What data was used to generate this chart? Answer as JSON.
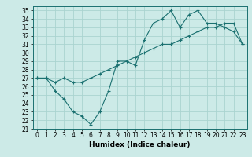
{
  "title": "",
  "xlabel": "Humidex (Indice chaleur)",
  "ylabel": "",
  "bg_color": "#cceae7",
  "grid_color": "#aad4d0",
  "line_color": "#1a7070",
  "xlim": [
    -0.5,
    23.5
  ],
  "ylim": [
    21,
    35.5
  ],
  "xticks": [
    0,
    1,
    2,
    3,
    4,
    5,
    6,
    7,
    8,
    9,
    10,
    11,
    12,
    13,
    14,
    15,
    16,
    17,
    18,
    19,
    20,
    21,
    22,
    23
  ],
  "yticks": [
    21,
    22,
    23,
    24,
    25,
    26,
    27,
    28,
    29,
    30,
    31,
    32,
    33,
    34,
    35
  ],
  "series1_x": [
    0,
    1,
    2,
    3,
    4,
    5,
    6,
    7,
    8,
    9,
    10,
    11,
    12,
    13,
    14,
    15,
    16,
    17,
    18,
    19,
    20,
    21,
    22,
    23
  ],
  "series1_y": [
    27.0,
    27.0,
    26.5,
    27.0,
    26.5,
    26.5,
    27.0,
    27.5,
    28.0,
    28.5,
    29.0,
    29.5,
    30.0,
    30.5,
    31.0,
    31.0,
    31.5,
    32.0,
    32.5,
    33.0,
    33.0,
    33.5,
    33.5,
    31.0
  ],
  "series2_x": [
    0,
    1,
    2,
    3,
    4,
    5,
    6,
    7,
    8,
    9,
    10,
    11,
    12,
    13,
    14,
    15,
    16,
    17,
    18,
    19,
    20,
    21,
    22,
    23
  ],
  "series2_y": [
    27.0,
    27.0,
    25.5,
    24.5,
    23.0,
    22.5,
    21.5,
    23.0,
    25.5,
    29.0,
    29.0,
    28.5,
    31.5,
    33.5,
    34.0,
    35.0,
    33.0,
    34.5,
    35.0,
    33.5,
    33.5,
    33.0,
    32.5,
    31.0
  ],
  "tick_fontsize": 5.5,
  "xlabel_fontsize": 6.5
}
